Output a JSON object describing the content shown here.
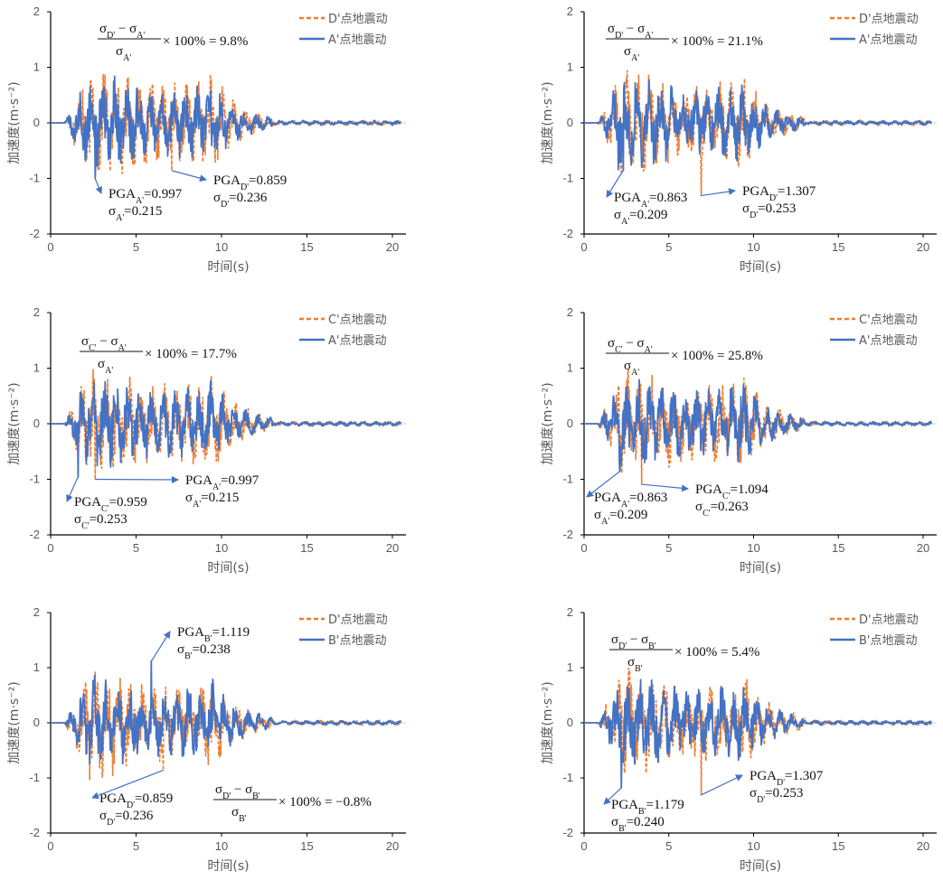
{
  "chart_data": [
    {
      "type": "line",
      "xlabel": "时间(s)",
      "ylabel": "加速度(m·s⁻²)",
      "xlim": [
        0,
        20
      ],
      "ylim": [
        -2,
        2
      ],
      "xticks": [
        "0",
        "5",
        "10",
        "15",
        "20"
      ],
      "yticks": [
        "2",
        "1",
        "0",
        "-1",
        "-2"
      ],
      "legend": "top-right",
      "grid": false,
      "series": [
        {
          "name": "D'点地震动",
          "color": "#ED7D31",
          "style": "dashed"
        },
        {
          "name": "A'点地震动",
          "color": "#4472C4",
          "style": "solid"
        }
      ],
      "annotations": [
        {
          "label": "PGA",
          "sub": "A'",
          "value": "=0.997",
          "t": 2.6,
          "a": -1.0
        },
        {
          "label": "σ",
          "sub": "A'",
          "value": "=0.215"
        },
        {
          "label": "PGA",
          "sub": "D'",
          "value": "=0.859",
          "t": 7.1,
          "a": -0.86
        },
        {
          "label": "σ",
          "sub": "D'",
          "value": "=0.236"
        }
      ],
      "formula": {
        "num_a": "σ",
        "num_a_sub": "D'",
        "num_b": "σ",
        "num_b_sub": "A'",
        "den": "σ",
        "den_sub": "A'",
        "result": " × 100% = 9.8%"
      }
    },
    {
      "type": "line",
      "xlabel": "时间(s)",
      "ylabel": "加速度(m·s⁻²)",
      "xlim": [
        0,
        20
      ],
      "ylim": [
        -2,
        2
      ],
      "xticks": [
        "0",
        "5",
        "10",
        "15",
        "20"
      ],
      "yticks": [
        "2",
        "1",
        "0",
        "-1",
        "-2"
      ],
      "legend": "top-right",
      "grid": false,
      "series": [
        {
          "name": "D'点地震动",
          "color": "#ED7D31",
          "style": "dashed"
        },
        {
          "name": "A'点地震动",
          "color": "#4472C4",
          "style": "solid"
        }
      ],
      "annotations": [
        {
          "label": "PGA",
          "sub": "A'",
          "value": "=0.863",
          "t": 2.3,
          "a": -0.86
        },
        {
          "label": "σ",
          "sub": "A'",
          "value": "=0.209"
        },
        {
          "label": "PGA",
          "sub": "D'",
          "value": "=1.307",
          "t": 6.9,
          "a": -1.31
        },
        {
          "label": "σ",
          "sub": "D'",
          "value": "=0.253"
        }
      ],
      "formula": {
        "num_a": "σ",
        "num_a_sub": "D'",
        "num_b": "σ",
        "num_b_sub": "A'",
        "den": "σ",
        "den_sub": "A'",
        "result": " × 100% = 21.1%"
      }
    },
    {
      "type": "line",
      "xlabel": "时间(s)",
      "ylabel": "加速度(m·s⁻²)",
      "xlim": [
        0,
        20
      ],
      "ylim": [
        -2,
        2
      ],
      "xticks": [
        "0",
        "5",
        "10",
        "15",
        "20"
      ],
      "yticks": [
        "2",
        "1",
        "0",
        "-1",
        "-2"
      ],
      "legend": "top-right",
      "grid": false,
      "series": [
        {
          "name": "C'点地震动",
          "color": "#ED7D31",
          "style": "dashed"
        },
        {
          "name": "A'点地震动",
          "color": "#4472C4",
          "style": "solid"
        }
      ],
      "annotations": [
        {
          "label": "PGA",
          "sub": "C'",
          "value": "=0.959",
          "t": 1.6,
          "a": -0.96
        },
        {
          "label": "σ",
          "sub": "C'",
          "value": "=0.253"
        },
        {
          "label": "PGA",
          "sub": "A'",
          "value": "=0.997",
          "t": 2.6,
          "a": -1.0
        },
        {
          "label": "σ",
          "sub": "A'",
          "value": "=0.215"
        }
      ],
      "formula": {
        "num_a": "σ",
        "num_a_sub": "C'",
        "num_b": "σ",
        "num_b_sub": "A'",
        "den": "σ",
        "den_sub": "A'",
        "result": " × 100% = 17.7%"
      }
    },
    {
      "type": "line",
      "xlabel": "时间(s)",
      "ylabel": "加速度(m·s⁻²)",
      "xlim": [
        0,
        20
      ],
      "ylim": [
        -2,
        2
      ],
      "xticks": [
        "0",
        "5",
        "10",
        "15",
        "20"
      ],
      "yticks": [
        "2",
        "1",
        "0",
        "-1",
        "-2"
      ],
      "legend": "top-right",
      "grid": false,
      "series": [
        {
          "name": "C'点地震动",
          "color": "#ED7D31",
          "style": "dashed"
        },
        {
          "name": "A'点地震动",
          "color": "#4472C4",
          "style": "solid"
        }
      ],
      "annotations": [
        {
          "label": "PGA",
          "sub": "A'",
          "value": "=0.863",
          "t": 2.1,
          "a": -0.86
        },
        {
          "label": "σ",
          "sub": "A'",
          "value": "=0.209"
        },
        {
          "label": "PGA",
          "sub": "C'",
          "value": "=1.094",
          "t": 3.4,
          "a": -1.09
        },
        {
          "label": "σ",
          "sub": "C'",
          "value": "=0.263"
        }
      ],
      "formula": {
        "num_a": "σ",
        "num_a_sub": "C'",
        "num_b": "σ",
        "num_b_sub": "A'",
        "den": "σ",
        "den_sub": "A'",
        "result": " × 100% = 25.8%"
      }
    },
    {
      "type": "line",
      "xlabel": "时间(s)",
      "ylabel": "加速度(m·s⁻²)",
      "xlim": [
        0,
        20
      ],
      "ylim": [
        -2,
        2
      ],
      "xticks": [
        "0",
        "5",
        "10",
        "15",
        "20"
      ],
      "yticks": [
        "2",
        "1",
        "0",
        "-1",
        "-2"
      ],
      "legend": "top-right",
      "grid": false,
      "series": [
        {
          "name": "D'点地震动",
          "color": "#ED7D31",
          "style": "dashed"
        },
        {
          "name": "B'点地震动",
          "color": "#4472C4",
          "style": "solid"
        }
      ],
      "annotations": [
        {
          "label": "PGA",
          "sub": "B'",
          "value": "=1.119",
          "t": 5.9,
          "a": 1.12
        },
        {
          "label": "σ",
          "sub": "B'",
          "value": "=0.238"
        },
        {
          "label": "PGA",
          "sub": "D'",
          "value": "=0.859",
          "t": 6.6,
          "a": -0.86
        },
        {
          "label": "σ",
          "sub": "D'",
          "value": "=0.236"
        }
      ],
      "formula": {
        "num_a": "σ",
        "num_a_sub": "D'",
        "num_b": "σ",
        "num_b_sub": "B'",
        "den": "σ",
        "den_sub": "B'",
        "result": " × 100% = −0.8%"
      }
    },
    {
      "type": "line",
      "xlabel": "时间(s)",
      "ylabel": "加速度(m·s⁻²)",
      "xlim": [
        0,
        20
      ],
      "ylim": [
        -2,
        2
      ],
      "xticks": [
        "0",
        "5",
        "10",
        "15",
        "20"
      ],
      "yticks": [
        "2",
        "1",
        "0",
        "-1",
        "-2"
      ],
      "legend": "top-right",
      "grid": false,
      "series": [
        {
          "name": "D'点地震动",
          "color": "#ED7D31",
          "style": "dashed"
        },
        {
          "name": "B'点地震动",
          "color": "#4472C4",
          "style": "solid"
        }
      ],
      "annotations": [
        {
          "label": "PGA",
          "sub": "B'",
          "value": "=1.179",
          "t": 2.2,
          "a": -1.18
        },
        {
          "label": "σ",
          "sub": "B'",
          "value": "=0.240"
        },
        {
          "label": "PGA",
          "sub": "D'",
          "value": "=1.307",
          "t": 6.9,
          "a": -1.31
        },
        {
          "label": "σ",
          "sub": "D'",
          "value": "=0.253"
        }
      ],
      "formula": {
        "num_a": "σ",
        "num_a_sub": "D'",
        "num_b": "σ",
        "num_b_sub": "B'",
        "den": "σ",
        "den_sub": "B'",
        "result": " × 100% = 5.4%"
      }
    }
  ]
}
